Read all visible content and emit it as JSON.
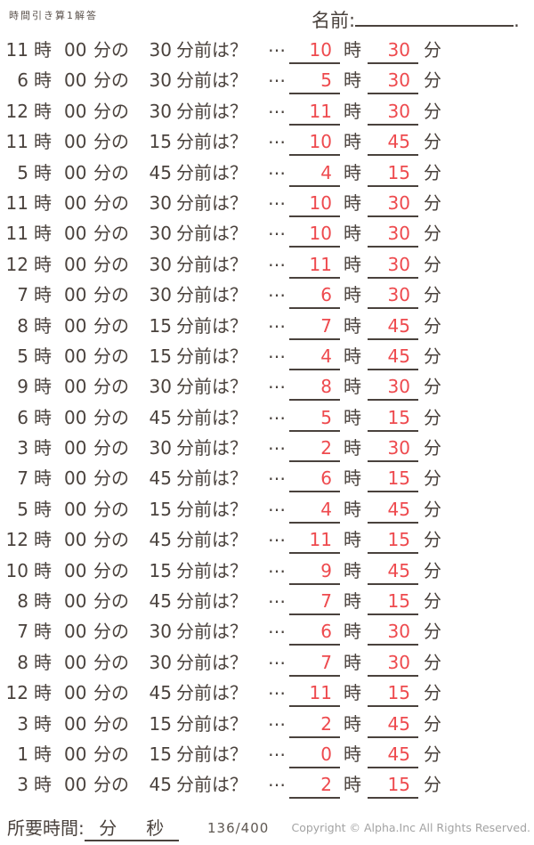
{
  "colors": {
    "ink": "#4a423d",
    "answer_red": "#ee4a4e",
    "copyright_gray": "#a3a3a3",
    "background": "#ffffff"
  },
  "header": {
    "title": "時間引き算1解答",
    "name_label": "名前:",
    "name_value": "",
    "name_line_suffix": "."
  },
  "labels": {
    "hour": "時",
    "zero_minutes": "00",
    "minutes_no": "分の",
    "minutes_before_q": "分前は？",
    "ellipsis": "…",
    "minute": "分"
  },
  "problems": [
    {
      "hour": "11",
      "minutes_before": "30",
      "answer_hour": "10",
      "answer_minutes": "30"
    },
    {
      "hour": "6",
      "minutes_before": "30",
      "answer_hour": "5",
      "answer_minutes": "30"
    },
    {
      "hour": "12",
      "minutes_before": "30",
      "answer_hour": "11",
      "answer_minutes": "30"
    },
    {
      "hour": "11",
      "minutes_before": "15",
      "answer_hour": "10",
      "answer_minutes": "45"
    },
    {
      "hour": "5",
      "minutes_before": "45",
      "answer_hour": "4",
      "answer_minutes": "15"
    },
    {
      "hour": "11",
      "minutes_before": "30",
      "answer_hour": "10",
      "answer_minutes": "30"
    },
    {
      "hour": "11",
      "minutes_before": "30",
      "answer_hour": "10",
      "answer_minutes": "30"
    },
    {
      "hour": "12",
      "minutes_before": "30",
      "answer_hour": "11",
      "answer_minutes": "30"
    },
    {
      "hour": "7",
      "minutes_before": "30",
      "answer_hour": "6",
      "answer_minutes": "30"
    },
    {
      "hour": "8",
      "minutes_before": "15",
      "answer_hour": "7",
      "answer_minutes": "45"
    },
    {
      "hour": "5",
      "minutes_before": "15",
      "answer_hour": "4",
      "answer_minutes": "45"
    },
    {
      "hour": "9",
      "minutes_before": "30",
      "answer_hour": "8",
      "answer_minutes": "30"
    },
    {
      "hour": "6",
      "minutes_before": "45",
      "answer_hour": "5",
      "answer_minutes": "15"
    },
    {
      "hour": "3",
      "minutes_before": "30",
      "answer_hour": "2",
      "answer_minutes": "30"
    },
    {
      "hour": "7",
      "minutes_before": "45",
      "answer_hour": "6",
      "answer_minutes": "15"
    },
    {
      "hour": "5",
      "minutes_before": "15",
      "answer_hour": "4",
      "answer_minutes": "45"
    },
    {
      "hour": "12",
      "minutes_before": "45",
      "answer_hour": "11",
      "answer_minutes": "15"
    },
    {
      "hour": "10",
      "minutes_before": "15",
      "answer_hour": "9",
      "answer_minutes": "45"
    },
    {
      "hour": "8",
      "minutes_before": "45",
      "answer_hour": "7",
      "answer_minutes": "15"
    },
    {
      "hour": "7",
      "minutes_before": "30",
      "answer_hour": "6",
      "answer_minutes": "30"
    },
    {
      "hour": "8",
      "minutes_before": "30",
      "answer_hour": "7",
      "answer_minutes": "30"
    },
    {
      "hour": "12",
      "minutes_before": "45",
      "answer_hour": "11",
      "answer_minutes": "15"
    },
    {
      "hour": "3",
      "minutes_before": "15",
      "answer_hour": "2",
      "answer_minutes": "45"
    },
    {
      "hour": "1",
      "minutes_before": "15",
      "answer_hour": "0",
      "answer_minutes": "45"
    },
    {
      "hour": "3",
      "minutes_before": "45",
      "answer_hour": "2",
      "answer_minutes": "15"
    }
  ],
  "footer": {
    "elapsed_label": "所要時間:",
    "elapsed_minutes_label": "分",
    "elapsed_seconds_label": "秒",
    "page_number": "136/400",
    "copyright": "Copyright ©  Alpha.Inc All Rights Reserved."
  }
}
